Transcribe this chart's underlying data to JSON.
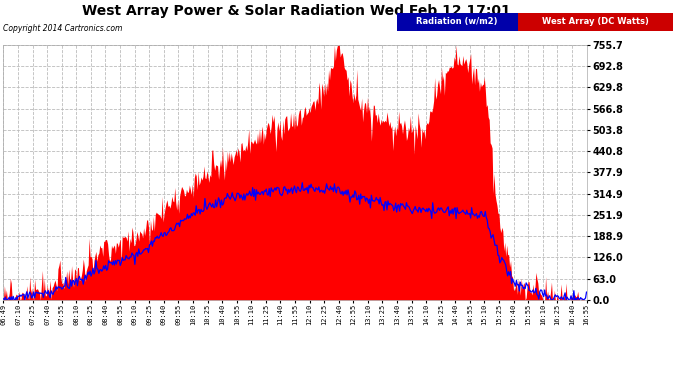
{
  "title": "West Array Power & Solar Radiation Wed Feb 12 17:01",
  "copyright": "Copyright 2014 Cartronics.com",
  "bg_color": "#ffffff",
  "plot_bg_color": "#ffffff",
  "grid_color": "#bbbbbb",
  "title_color": "#000000",
  "yticks": [
    0.0,
    63.0,
    126.0,
    188.9,
    251.9,
    314.9,
    377.9,
    440.8,
    503.8,
    566.8,
    629.8,
    692.8,
    755.7
  ],
  "ymax": 755.7,
  "ymin": 0.0,
  "xtick_labels": [
    "06:49",
    "07:10",
    "07:25",
    "07:40",
    "07:55",
    "08:10",
    "08:25",
    "08:40",
    "08:55",
    "09:10",
    "09:25",
    "09:40",
    "09:55",
    "10:10",
    "10:25",
    "10:40",
    "10:55",
    "11:10",
    "11:25",
    "11:40",
    "11:55",
    "12:10",
    "12:25",
    "12:40",
    "12:55",
    "13:10",
    "13:25",
    "13:40",
    "13:55",
    "14:10",
    "14:25",
    "14:40",
    "14:55",
    "15:10",
    "15:25",
    "15:40",
    "15:55",
    "16:10",
    "16:25",
    "16:40",
    "16:55"
  ],
  "radiation_color": "#0000ff",
  "west_color": "#ff0000",
  "legend_radiation_text": "Radiation (w/m2)",
  "legend_west_text": "West Array (DC Watts)",
  "legend_radiation_bg": "#0000aa",
  "legend_west_bg": "#cc0000"
}
